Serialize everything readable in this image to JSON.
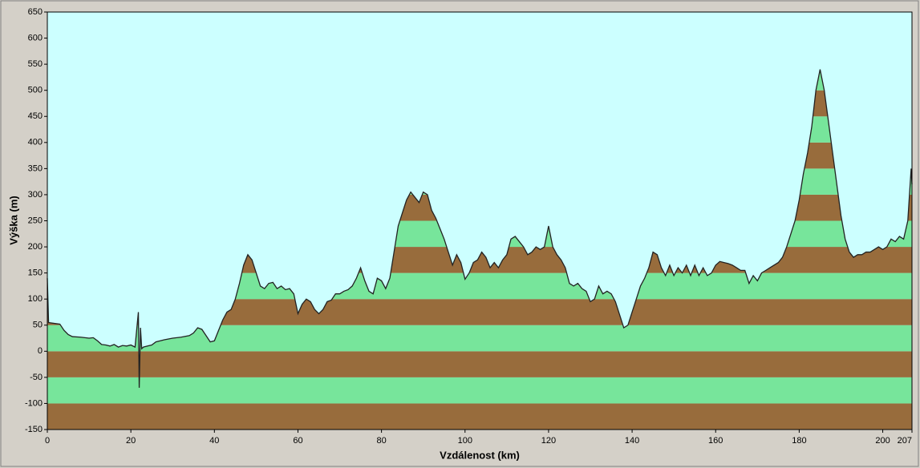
{
  "chart_data": {
    "type": "area",
    "xlabel": "Vzdálenost  (km)",
    "ylabel": "Výška (m)",
    "xlim": [
      0,
      207
    ],
    "ylim": [
      -150,
      650
    ],
    "xticks": [
      0,
      20,
      40,
      60,
      80,
      100,
      120,
      140,
      160,
      180,
      200,
      207
    ],
    "yticks": [
      -150,
      -100,
      -50,
      0,
      50,
      100,
      150,
      200,
      250,
      300,
      350,
      400,
      450,
      500,
      550,
      600,
      650
    ],
    "background": "#ccffff",
    "band_colors": [
      "#77e59b",
      "#986c3c"
    ],
    "line_color": "#222222",
    "x": [
      0,
      0.3,
      2,
      3,
      4,
      5,
      6,
      8,
      10,
      11,
      12,
      13,
      14,
      15,
      16,
      17,
      18,
      19,
      20,
      21,
      21.8,
      22,
      22.3,
      22.6,
      23,
      24,
      25,
      26,
      28,
      30,
      32,
      34,
      35,
      36,
      37,
      38,
      39,
      40,
      41,
      42,
      43,
      44,
      45,
      46,
      47,
      48,
      49,
      50,
      51,
      52,
      53,
      54,
      55,
      56,
      57,
      58,
      59,
      60,
      61,
      62,
      63,
      64,
      65,
      66,
      67,
      68,
      69,
      70,
      71,
      72,
      73,
      74,
      75,
      76,
      77,
      78,
      79,
      80,
      81,
      82,
      83,
      84,
      85,
      86,
      87,
      88,
      89,
      90,
      91,
      92,
      93,
      94,
      95,
      96,
      97,
      98,
      99,
      100,
      101,
      102,
      103,
      104,
      105,
      106,
      107,
      108,
      109,
      110,
      111,
      112,
      113,
      114,
      115,
      116,
      117,
      118,
      119,
      120,
      121,
      122,
      123,
      124,
      125,
      126,
      127,
      128,
      129,
      130,
      131,
      132,
      133,
      134,
      135,
      136,
      137,
      138,
      139,
      140,
      141,
      142,
      143,
      144,
      145,
      146,
      147,
      148,
      149,
      150,
      151,
      152,
      153,
      154,
      155,
      156,
      157,
      158,
      159,
      160,
      161,
      162,
      163,
      164,
      165,
      166,
      167,
      168,
      169,
      170,
      171,
      172,
      173,
      174,
      175,
      176,
      177,
      178,
      179,
      180,
      181,
      182,
      183,
      184,
      185,
      186,
      187,
      188,
      189,
      190,
      191,
      192,
      193,
      194,
      195,
      196,
      197,
      198,
      199,
      200,
      201,
      202,
      203,
      204,
      205,
      206,
      206.8,
      207
    ],
    "values": [
      140,
      55,
      53,
      52,
      40,
      32,
      28,
      27,
      25,
      26,
      20,
      13,
      12,
      10,
      13,
      8,
      11,
      10,
      12,
      8,
      75,
      -70,
      45,
      5,
      8,
      10,
      12,
      18,
      22,
      25,
      27,
      30,
      35,
      45,
      42,
      30,
      18,
      20,
      40,
      60,
      75,
      80,
      100,
      130,
      165,
      185,
      175,
      150,
      125,
      120,
      130,
      132,
      120,
      125,
      118,
      120,
      110,
      72,
      90,
      100,
      95,
      80,
      72,
      80,
      95,
      98,
      110,
      110,
      115,
      118,
      125,
      140,
      160,
      135,
      115,
      110,
      140,
      135,
      120,
      140,
      190,
      240,
      265,
      290,
      305,
      295,
      285,
      305,
      300,
      270,
      255,
      235,
      215,
      190,
      165,
      185,
      170,
      138,
      150,
      170,
      175,
      190,
      180,
      160,
      170,
      160,
      175,
      185,
      215,
      220,
      210,
      200,
      185,
      190,
      200,
      195,
      200,
      240,
      200,
      185,
      175,
      160,
      130,
      125,
      130,
      120,
      115,
      95,
      100,
      125,
      110,
      115,
      110,
      95,
      70,
      45,
      50,
      75,
      100,
      125,
      140,
      160,
      190,
      185,
      160,
      145,
      165,
      145,
      160,
      150,
      165,
      145,
      165,
      145,
      160,
      145,
      150,
      165,
      172,
      170,
      168,
      165,
      160,
      155,
      155,
      130,
      145,
      135,
      150,
      155,
      160,
      165,
      170,
      180,
      200,
      225,
      250,
      290,
      340,
      380,
      430,
      500,
      540,
      500,
      440,
      380,
      320,
      260,
      215,
      190,
      180,
      185,
      185,
      190,
      190,
      195,
      200,
      195,
      200,
      215,
      210,
      220,
      215,
      250,
      350,
      320
    ]
  }
}
